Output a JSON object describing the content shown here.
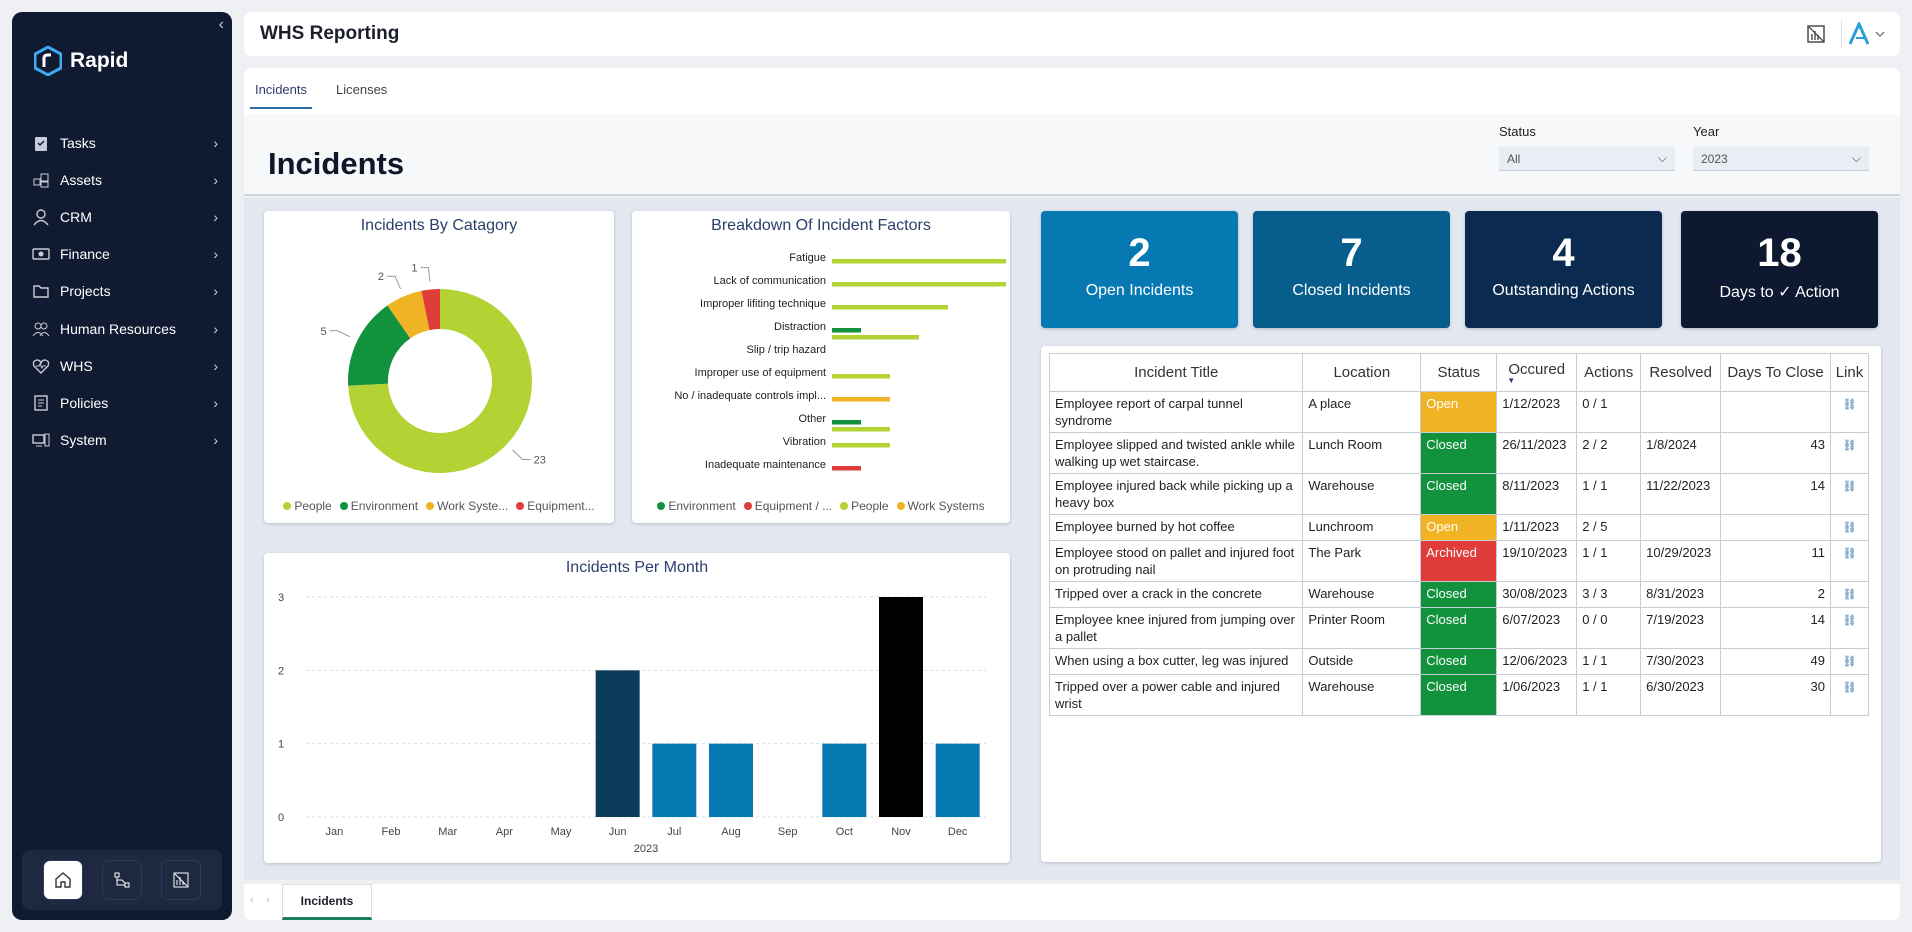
{
  "app": {
    "brand": "Rapid",
    "title": "WHS Reporting"
  },
  "sidebar": {
    "items": [
      {
        "label": "Tasks",
        "icon": "clipboard-icon"
      },
      {
        "label": "Assets",
        "icon": "assets-icon"
      },
      {
        "label": "CRM",
        "icon": "person-icon"
      },
      {
        "label": "Finance",
        "icon": "money-icon"
      },
      {
        "label": "Projects",
        "icon": "folder-icon"
      },
      {
        "label": "Human Resources",
        "icon": "people-icon"
      },
      {
        "label": "WHS",
        "icon": "heart-pulse-icon"
      },
      {
        "label": "Policies",
        "icon": "document-icon"
      },
      {
        "label": "System",
        "icon": "system-icon"
      }
    ]
  },
  "tabs": [
    {
      "label": "Incidents"
    },
    {
      "label": "Licenses"
    }
  ],
  "page": {
    "title": "Incidents"
  },
  "filters": {
    "status": {
      "label": "Status",
      "value": "All"
    },
    "year": {
      "label": "Year",
      "value": "2023"
    }
  },
  "kpis": [
    {
      "value": "2",
      "label": "Open Incidents",
      "color": "#0679b3"
    },
    {
      "value": "7",
      "label": "Closed Incidents",
      "color": "#075e8d"
    },
    {
      "value": "4",
      "label": "Outstanding Actions",
      "color": "#0a2b4f"
    },
    {
      "value": "18",
      "label": "Days to ✓ Action",
      "color": "#0e1830"
    }
  ],
  "colors": {
    "people": "#b3d335",
    "environment": "#13923e",
    "work": "#f0b323",
    "equipment": "#e03c3a"
  },
  "chart_data": [
    {
      "type": "pie",
      "title": "Incidents By Catagory",
      "labels": [
        "People",
        "Environment",
        "Work Syste...",
        "Equipment..."
      ],
      "values": [
        23,
        5,
        2,
        1
      ]
    },
    {
      "type": "bar",
      "title": "Breakdown Of Incident Factors",
      "categories": [
        "Fatigue",
        "Lack of communication",
        "Improper lifiting technique",
        "Distraction",
        "Slip / trip hazard",
        "Improper use of equipment",
        "No / inadequate controls impl...",
        "Other",
        "Vibration",
        "Inadequate maintenance"
      ],
      "series": [
        {
          "name": "Environment",
          "values": [
            0,
            0,
            0,
            1,
            0,
            0,
            0,
            1,
            0,
            0
          ]
        },
        {
          "name": "Equipment / ...",
          "values": [
            0,
            0,
            0,
            0,
            0,
            0,
            0,
            0,
            0,
            1
          ]
        },
        {
          "name": "People",
          "values": [
            6,
            6,
            4,
            3,
            0,
            2,
            0,
            2,
            2,
            0
          ]
        },
        {
          "name": "Work Systems",
          "values": [
            0,
            0,
            0,
            0,
            0,
            0,
            2,
            0,
            0,
            0
          ]
        }
      ],
      "legend": [
        "Environment",
        "Equipment / ...",
        "People",
        "Work Systems"
      ]
    },
    {
      "type": "bar",
      "title": "Incidents Per Month",
      "xlabel": "2023",
      "categories": [
        "Jan",
        "Feb",
        "Mar",
        "Apr",
        "May",
        "Jun",
        "Jul",
        "Aug",
        "Sep",
        "Oct",
        "Nov",
        "Dec"
      ],
      "values": [
        0,
        0,
        0,
        0,
        0,
        2,
        1,
        1,
        0,
        1,
        3,
        1
      ],
      "ylim": [
        0,
        3
      ],
      "yticks": [
        "0",
        "1",
        "2",
        "3"
      ]
    }
  ],
  "table": {
    "columns": [
      "Incident Title",
      "Location",
      "Status",
      "Occured",
      "Actions",
      "Resolved",
      "Days To Close",
      "Link"
    ],
    "rows": [
      {
        "title": "Employee report of carpal tunnel syndrome",
        "location": "A place",
        "status": "Open",
        "occured": "1/12/2023",
        "actions": "0 / 1",
        "resolved": "",
        "days": ""
      },
      {
        "title": "Employee slipped and twisted ankle while walking up wet staircase.",
        "location": "Lunch Room",
        "status": "Closed",
        "occured": "26/11/2023",
        "actions": "2 / 2",
        "resolved": "1/8/2024",
        "days": "43"
      },
      {
        "title": "Employee injured back while picking up a heavy box",
        "location": "Warehouse",
        "status": "Closed",
        "occured": "8/11/2023",
        "actions": "1 / 1",
        "resolved": "11/22/2023",
        "days": "14"
      },
      {
        "title": "Employee burned by hot coffee",
        "location": "Lunchroom",
        "status": "Open",
        "occured": "1/11/2023",
        "actions": "2 / 5",
        "resolved": "",
        "days": ""
      },
      {
        "title": "Employee stood on pallet and injured foot on protruding nail",
        "location": "The Park",
        "status": "Archived",
        "occured": "19/10/2023",
        "actions": "1 / 1",
        "resolved": "10/29/2023",
        "days": "11"
      },
      {
        "title": "Tripped over a crack in the concrete",
        "location": "Warehouse",
        "status": "Closed",
        "occured": "30/08/2023",
        "actions": "3 / 3",
        "resolved": "8/31/2023",
        "days": "2"
      },
      {
        "title": "Employee knee injured from jumping over a pallet",
        "location": "Printer Room",
        "status": "Closed",
        "occured": "6/07/2023",
        "actions": "0 / 0",
        "resolved": "7/19/2023",
        "days": "14"
      },
      {
        "title": "When using a box cutter, leg was injured",
        "location": "Outside",
        "status": "Closed",
        "occured": "12/06/2023",
        "actions": "1 / 1",
        "resolved": "7/30/2023",
        "days": "49"
      },
      {
        "title": "Tripped over a power cable and injured wrist",
        "location": "Warehouse",
        "status": "Closed",
        "occured": "1/06/2023",
        "actions": "1 / 1",
        "resolved": "6/30/2023",
        "days": "30"
      }
    ]
  },
  "statusColors": {
    "Open": "#f0b323",
    "Closed": "#13923e",
    "Archived": "#e03c3a"
  },
  "footer": {
    "tab": "Incidents"
  }
}
